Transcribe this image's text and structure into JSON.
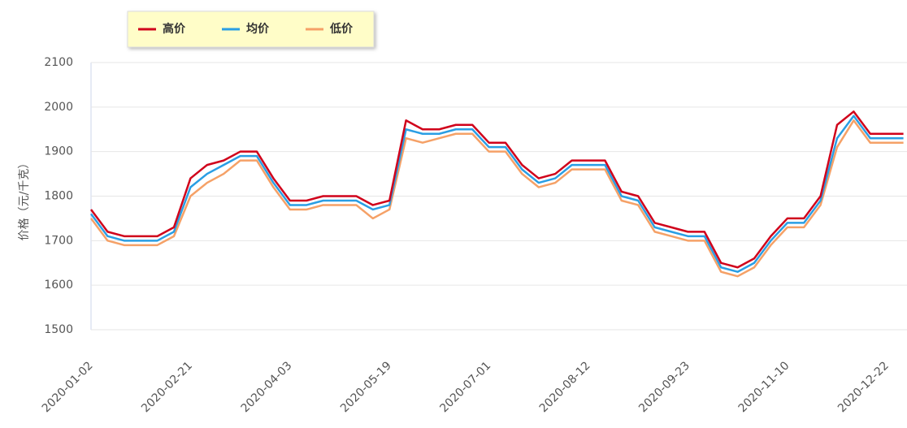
{
  "chart_data": {
    "type": "line",
    "y_label": "价格（元/千克）",
    "categories": [
      "2020-01-02",
      null,
      null,
      null,
      null,
      null,
      "2020-02-21",
      null,
      null,
      null,
      null,
      null,
      "2020-04-03",
      null,
      null,
      null,
      null,
      null,
      "2020-05-19",
      null,
      null,
      null,
      null,
      null,
      "2020-07-01",
      null,
      null,
      null,
      null,
      null,
      "2020-08-12",
      null,
      null,
      null,
      null,
      null,
      "2020-09-23",
      null,
      null,
      null,
      null,
      null,
      "2020-11-10",
      null,
      null,
      null,
      null,
      null,
      "2020-12-22",
      null
    ],
    "series": [
      {
        "name": "高价",
        "color": "#d0021b",
        "values": [
          1770,
          1720,
          1710,
          1710,
          1710,
          1730,
          1840,
          1870,
          1880,
          1900,
          1900,
          1840,
          1790,
          1790,
          1800,
          1800,
          1800,
          1780,
          1790,
          1970,
          1950,
          1950,
          1960,
          1960,
          1920,
          1920,
          1870,
          1840,
          1850,
          1880,
          1880,
          1880,
          1810,
          1800,
          1740,
          1730,
          1720,
          1720,
          1650,
          1640,
          1660,
          1710,
          1750,
          1750,
          1800,
          1960,
          1990,
          1940,
          1940,
          1940
        ]
      },
      {
        "name": "均价",
        "color": "#2a9ee4",
        "values": [
          1760,
          1710,
          1700,
          1700,
          1700,
          1720,
          1820,
          1850,
          1870,
          1890,
          1890,
          1830,
          1780,
          1780,
          1790,
          1790,
          1790,
          1770,
          1780,
          1950,
          1940,
          1940,
          1950,
          1950,
          1910,
          1910,
          1860,
          1830,
          1840,
          1870,
          1870,
          1870,
          1800,
          1790,
          1730,
          1720,
          1710,
          1710,
          1640,
          1630,
          1650,
          1700,
          1740,
          1740,
          1790,
          1930,
          1980,
          1930,
          1930,
          1930
        ]
      },
      {
        "name": "低价",
        "color": "#f5a167",
        "values": [
          1750,
          1700,
          1690,
          1690,
          1690,
          1710,
          1800,
          1830,
          1850,
          1880,
          1880,
          1820,
          1770,
          1770,
          1780,
          1780,
          1780,
          1750,
          1770,
          1930,
          1920,
          1930,
          1940,
          1940,
          1900,
          1900,
          1850,
          1820,
          1830,
          1860,
          1860,
          1860,
          1790,
          1780,
          1720,
          1710,
          1700,
          1700,
          1630,
          1620,
          1640,
          1690,
          1730,
          1730,
          1780,
          1910,
          1970,
          1920,
          1920,
          1920
        ]
      }
    ],
    "ylim": [
      1500,
      2100
    ],
    "yticks": [
      1500,
      1600,
      1700,
      1800,
      1900,
      2000,
      2100
    ],
    "grid": true
  }
}
